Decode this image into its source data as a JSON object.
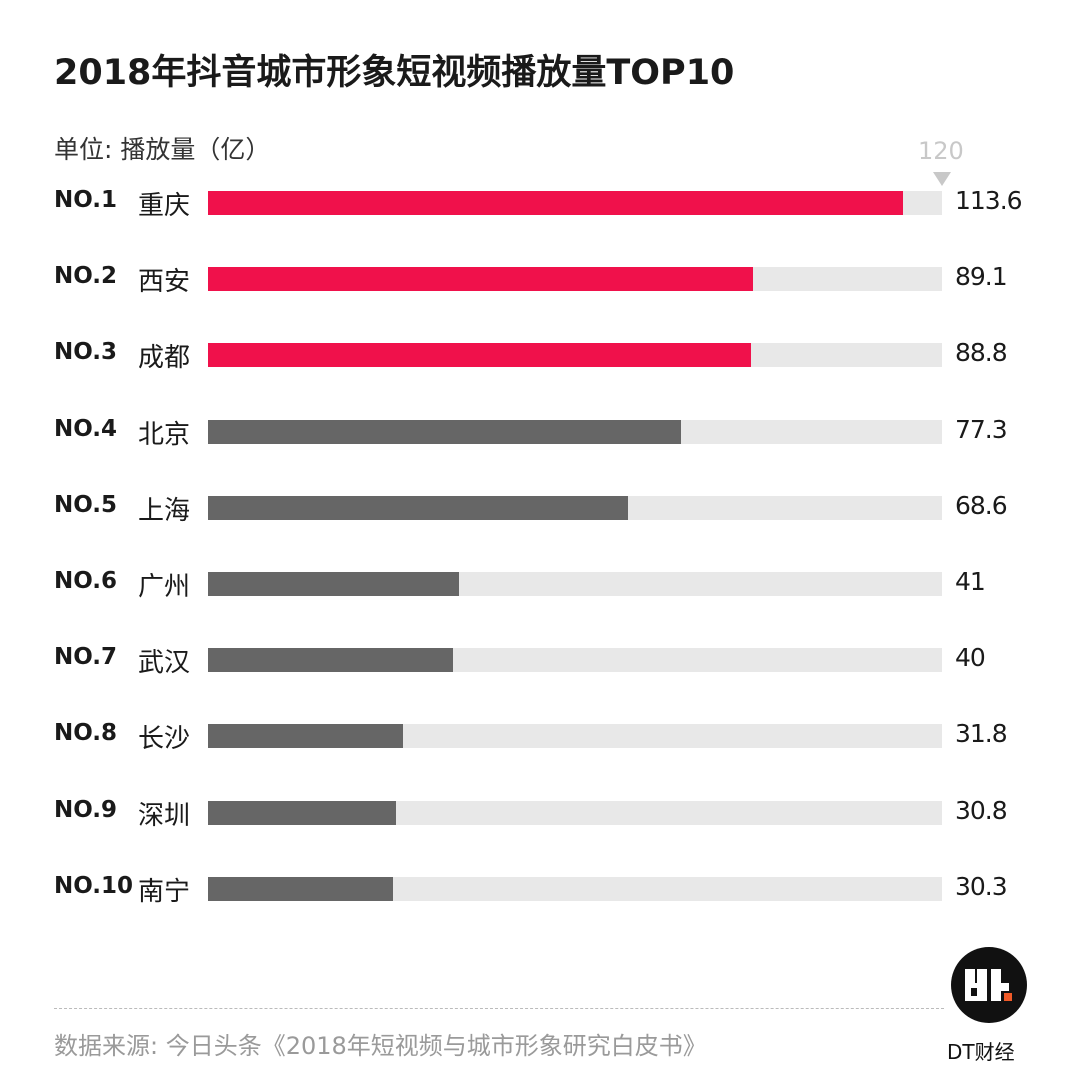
{
  "chart_data": {
    "type": "bar",
    "orientation": "horizontal",
    "title": "2018年抖音城市形象短视频播放量TOP10",
    "unit_label": "单位: 播放量（亿）",
    "xlim": [
      0,
      120
    ],
    "max_label": "120",
    "ranks": [
      "NO.1",
      "NO.2",
      "NO.3",
      "NO.4",
      "NO.5",
      "NO.6",
      "NO.7",
      "NO.8",
      "NO.9",
      "NO.10"
    ],
    "categories": [
      "重庆",
      "西安",
      "成都",
      "北京",
      "上海",
      "广州",
      "武汉",
      "长沙",
      "深圳",
      "南宁"
    ],
    "values": [
      113.6,
      89.1,
      88.8,
      77.3,
      68.6,
      41,
      40,
      31.8,
      30.8,
      30.3
    ],
    "value_labels": [
      "113.6",
      "89.1",
      "88.8",
      "77.3",
      "68.6",
      "41",
      "40",
      "31.8",
      "30.8",
      "30.3"
    ],
    "highlight_top": 3,
    "colors": {
      "highlight": "#f0114b",
      "default": "#666666",
      "track": "#e8e8e8"
    },
    "grid": false,
    "source": "数据来源: 今日头条《2018年短视频与城市形象研究白皮书》"
  },
  "brand": {
    "logo_text": "dt.",
    "name": "DT财经",
    "accent": "#f05a28"
  }
}
